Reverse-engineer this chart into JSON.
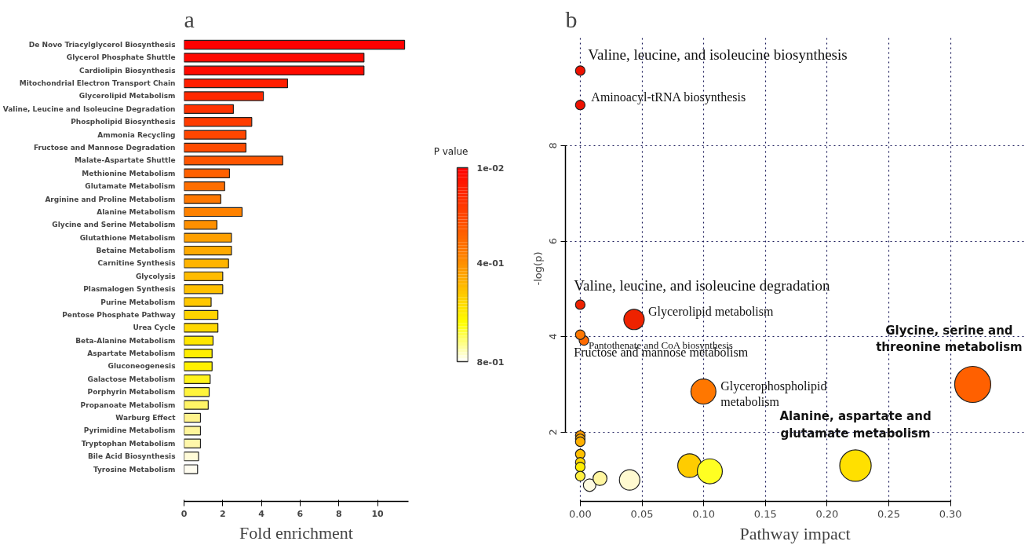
{
  "chart_data": [
    {
      "type": "bar",
      "orientation": "horizontal",
      "title": "a",
      "xlabel": "Fold enrichment",
      "categories": [
        "De Novo Triacylglycerol Biosynthesis",
        "Glycerol Phosphate Shuttle",
        "Cardiolipin Biosynthesis",
        "Mitochondrial Electron Transport Chain",
        "Glycerolipid Metabolism",
        "Valine, Leucine and Isoleucine Degradation",
        "Phospholipid Biosynthesis",
        "Ammonia Recycling",
        "Fructose and Mannose Degradation",
        "Malate-Aspartate Shuttle",
        "Methionine Metabolism",
        "Glutamate Metabolism",
        "Arginine and Proline Metabolism",
        "Alanine Metabolism",
        "Glycine and Serine Metabolism",
        "Glutathione Metabolism",
        "Betaine Metabolism",
        "Carnitine Synthesis",
        "Glycolysis",
        "Plasmalogen Synthesis",
        "Purine Metabolism",
        "Pentose Phosphate Pathway",
        "Urea Cycle",
        "Beta-Alanine Metabolism",
        "Aspartate Metabolism",
        "Gluconeogenesis",
        "Galactose Metabolism",
        "Porphyrin Metabolism",
        "Propanoate Metabolism",
        "Warburg Effect",
        "Pyrimidine Metabolism",
        "Tryptophan Metabolism",
        "Bile Acid Biosynthesis",
        "Tyrosine Metabolism"
      ],
      "values": [
        11.4,
        9.3,
        9.3,
        5.35,
        4.1,
        2.55,
        3.5,
        3.2,
        3.2,
        5.1,
        2.35,
        2.1,
        1.9,
        3.0,
        1.7,
        2.45,
        2.45,
        2.3,
        2.0,
        2.0,
        1.4,
        1.75,
        1.75,
        1.5,
        1.45,
        1.45,
        1.35,
        1.3,
        1.25,
        0.85,
        0.85,
        0.85,
        0.75,
        0.7
      ],
      "colors": [
        "#ff0000",
        "#ff0800",
        "#ff0a00",
        "#ff1e00",
        "#ff2800",
        "#ff3200",
        "#ff3c00",
        "#ff4600",
        "#ff4b00",
        "#ff5500",
        "#ff6000",
        "#ff6e00",
        "#ff7800",
        "#ff8200",
        "#ff9000",
        "#ffa000",
        "#ffaa00",
        "#ffb400",
        "#ffbc00",
        "#ffc000",
        "#ffc800",
        "#ffd400",
        "#ffd800",
        "#ffe600",
        "#ffee00",
        "#fff000",
        "#fff41a",
        "#fff43c",
        "#fff466",
        "#fff38c",
        "#fff59a",
        "#fff7aa",
        "#fffbd8",
        "#fffdf0"
      ],
      "xlim": [
        0,
        11.6
      ],
      "xticks": [
        0,
        2,
        4,
        6,
        8,
        10
      ],
      "grid": false,
      "clabel": "P value",
      "clim": [
        0.01,
        0.8
      ],
      "cticks": [
        {
          "value": 0.01,
          "label": "1e-02"
        },
        {
          "value": 0.4,
          "label": "4e-01"
        },
        {
          "value": 0.8,
          "label": "8e-01"
        }
      ]
    },
    {
      "type": "bubble",
      "title": "b",
      "xlabel": "Pathway impact",
      "ylabel": "-log(p)",
      "x": [
        0,
        0,
        0,
        0.0436,
        0.003,
        0,
        0.0998,
        0.318,
        0,
        0,
        0,
        0,
        0,
        0,
        0,
        0.0076,
        0.016,
        0.04,
        0.0886,
        0.105,
        0.223
      ],
      "values": [
        9.57,
        8.85,
        4.67,
        4.36,
        3.92,
        4.04,
        2.85,
        3.0,
        1.93,
        1.86,
        1.8,
        1.54,
        1.37,
        1.27,
        1.08,
        0.89,
        1.03,
        1.0,
        1.3,
        1.18,
        1.3
      ],
      "sizes": [
        0.07,
        0.07,
        0.07,
        0.32,
        0.07,
        0.07,
        0.48,
        1,
        0.07,
        0.07,
        0.07,
        0.07,
        0.07,
        0.07,
        0.07,
        0.12,
        0.15,
        0.32,
        0.43,
        0.48,
        0.76
      ],
      "colors": [
        "#ee1100",
        "#ee1100",
        "#ee2200",
        "#ee2200",
        "#ff6a00",
        "#ff7700",
        "#ff7700",
        "#ff6000",
        "#ff9a00",
        "#ffaa00",
        "#ffb000",
        "#ffc000",
        "#ffd800",
        "#ffee00",
        "#fff040",
        "#fffbe0",
        "#fff6a0",
        "#fffad0",
        "#ffcc00",
        "#ffff22",
        "#ffe000"
      ],
      "xlim": [
        -0.012,
        0.36
      ],
      "xticks": [
        {
          "value": 0,
          "label": "0.00"
        },
        {
          "value": 0.05,
          "label": "0.05"
        },
        {
          "value": 0.1,
          "label": "0.10"
        },
        {
          "value": 0.15,
          "label": "0.15"
        },
        {
          "value": 0.2,
          "label": "0.20"
        },
        {
          "value": 0.25,
          "label": "0.25"
        },
        {
          "value": 0.3,
          "label": "0.30"
        }
      ],
      "ylim": [
        0.55,
        10.3
      ],
      "yticks": [
        2,
        4,
        6,
        8
      ],
      "grid": true,
      "annotations": [
        {
          "text": "Valine, leucine, and isoleucine biosynthesis",
          "x": 0,
          "y": 9.57
        },
        {
          "text": "Aminoacyl-tRNA biosynthesis",
          "x": 0,
          "y": 8.85
        },
        {
          "text": "Valine, leucine, and isoleucine degradation",
          "x": 0,
          "y": 4.67
        },
        {
          "text": "Glycerolipid metabolism",
          "x": 0.0436,
          "y": 4.36
        },
        {
          "text": "Pantothenate and CoA biosynthesis",
          "x": 0.003,
          "y": 3.92
        },
        {
          "text": "Fructose and mannose metabolism",
          "x": 0,
          "y": 4.04
        },
        {
          "text": "Glycerophospholipid\nmetabolism",
          "x": 0.0998,
          "y": 2.85
        },
        {
          "text": "Glycine, serine and\nthreonine metabolism",
          "x": 0.318,
          "y": 3.0
        },
        {
          "text": "Alanine, aspartate and\nglutamate metabolism",
          "x": 0.223,
          "y": 1.3
        }
      ]
    }
  ]
}
